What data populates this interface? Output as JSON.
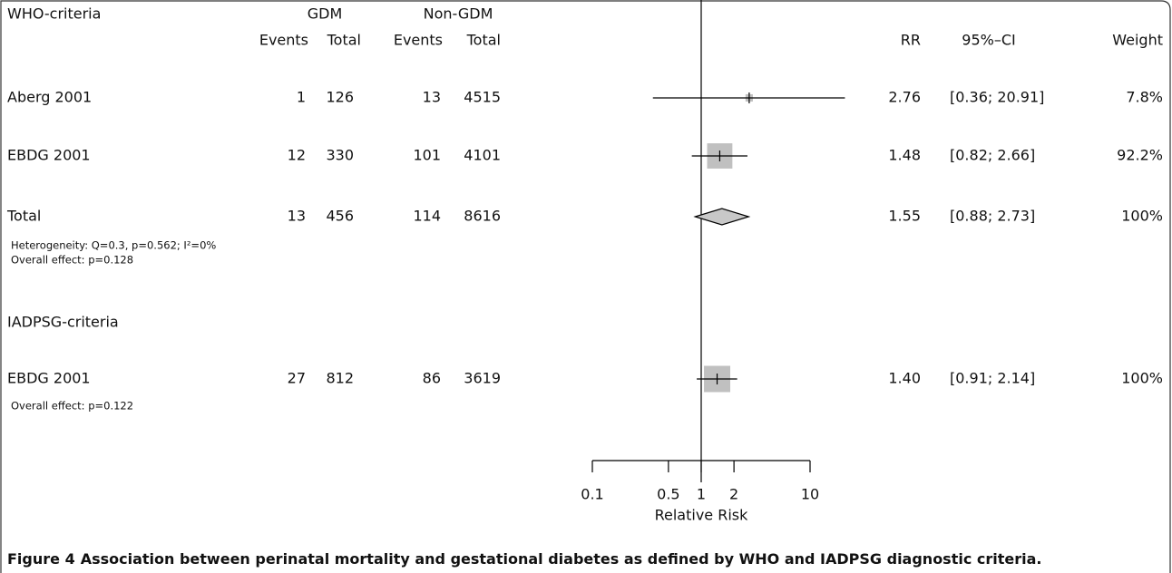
{
  "chart_data": {
    "type": "forest",
    "columns": {
      "gdm": "GDM",
      "non_gdm": "Non-GDM",
      "events": "Events",
      "total": "Total",
      "rr": "RR",
      "ci": "95%–CI",
      "weight": "Weight"
    },
    "groups": [
      {
        "title": "WHO-criteria",
        "studies": [
          {
            "name": "Aberg 2001",
            "gdm_events": 1,
            "gdm_total": 126,
            "non_events": 13,
            "non_total": 4515,
            "rr": 2.76,
            "ci": [
              0.36,
              20.91
            ],
            "ci_label": "[0.36; 20.91]",
            "weight": 7.8,
            "weight_label": "7.8%"
          },
          {
            "name": "EBDG 2001",
            "gdm_events": 12,
            "gdm_total": 330,
            "non_events": 101,
            "non_total": 4101,
            "rr": 1.48,
            "ci": [
              0.82,
              2.66
            ],
            "ci_label": "[0.82; 2.66]",
            "weight": 92.2,
            "weight_label": "92.2%"
          }
        ],
        "total": {
          "name": "Total",
          "gdm_events": 13,
          "gdm_total": 456,
          "non_events": 114,
          "non_total": 8616,
          "rr": 1.55,
          "ci": [
            0.88,
            2.73
          ],
          "ci_label": "[0.88; 2.73]",
          "weight": 100,
          "weight_label": "100%"
        },
        "notes": [
          "Heterogeneity: Q=0.3, p=0.562; I²=0%",
          "Overall effect: p=0.128"
        ]
      },
      {
        "title": "IADPSG-criteria",
        "studies": [
          {
            "name": "EBDG 2001",
            "gdm_events": 27,
            "gdm_total": 812,
            "non_events": 86,
            "non_total": 3619,
            "rr": 1.4,
            "rr_label": "1.40",
            "ci": [
              0.91,
              2.14
            ],
            "ci_label": "[0.91; 2.14]",
            "weight": 100,
            "weight_label": "100%"
          }
        ],
        "notes": [
          "Overall effect: p=0.122"
        ]
      }
    ],
    "x_label": "Relative Risk",
    "xscale": "log",
    "xlim": [
      0.1,
      10
    ],
    "xticks": [
      0.1,
      0.5,
      1,
      2,
      10
    ],
    "reference_line": 1,
    "square_color": "#c0c0c0",
    "diamond_color": "#c8c8c8",
    "caption_label": "Figure 4",
    "caption": "Association between perinatal mortality and gestational diabetes as defined by WHO and IADPSG diagnostic criteria."
  }
}
